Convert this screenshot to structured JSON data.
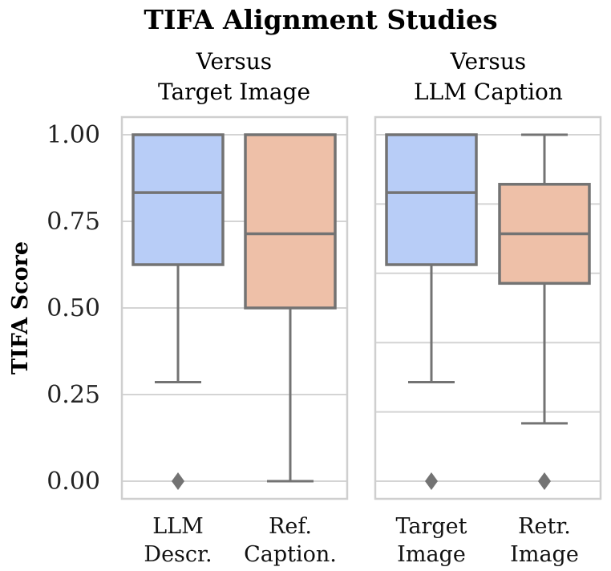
{
  "chart_data": {
    "type": "box",
    "title": "TIFA Alignment Studies",
    "ylabel": "TIFA Score",
    "ylim": [
      0.0,
      1.0
    ],
    "yticks": [
      "0.00",
      "0.25",
      "0.50",
      "0.75",
      "1.00"
    ],
    "colors": {
      "blue": "#b8cdf7",
      "orange": "#eec0a8",
      "line": "#737373",
      "grid": "#d4d4d4"
    },
    "panels": [
      {
        "subtitle": [
          "Versus",
          "Target Image"
        ],
        "boxes": [
          {
            "label": [
              "LLM",
              "Descr."
            ],
            "color": "blue",
            "whisker_low": 0.286,
            "q1": 0.625,
            "median": 0.833,
            "q3": 1.0,
            "whisker_high": 1.0,
            "fliers": [
              0.0
            ]
          },
          {
            "label": [
              "Ref.",
              "Caption."
            ],
            "color": "orange",
            "whisker_low": 0.0,
            "q1": 0.5,
            "median": 0.714,
            "q3": 1.0,
            "whisker_high": 1.0,
            "fliers": []
          }
        ]
      },
      {
        "subtitle": [
          "Versus",
          "LLM Caption"
        ],
        "boxes": [
          {
            "label": [
              "Target",
              "Image"
            ],
            "color": "blue",
            "whisker_low": 0.286,
            "q1": 0.625,
            "median": 0.833,
            "q3": 1.0,
            "whisker_high": 1.0,
            "fliers": [
              0.0
            ]
          },
          {
            "label": [
              "Retr.",
              "Image"
            ],
            "color": "orange",
            "whisker_low": 0.167,
            "q1": 0.571,
            "median": 0.714,
            "q3": 0.857,
            "whisker_high": 1.0,
            "fliers": [
              0.0
            ]
          }
        ]
      }
    ]
  }
}
